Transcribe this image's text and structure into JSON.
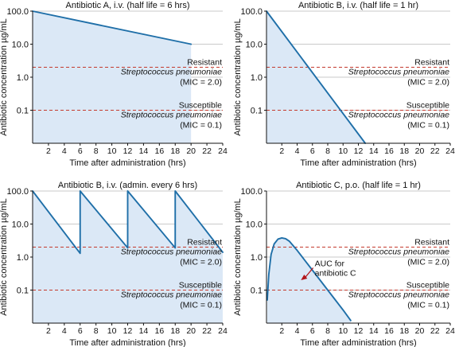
{
  "colors": {
    "line": "#1f6fa8",
    "fill": "#dbe8f6",
    "mic_line": "#c43a2e",
    "grid": "#b9b9b9",
    "arrow": "#b3151a"
  },
  "chart_data": [
    {
      "type": "line",
      "title": "Antibiotic A, i.v. (half life = 6 hrs)",
      "xlabel": "Time after administration (hrs)",
      "ylabel": "Antibiotic concentration µg/mL",
      "xlim": [
        0,
        24
      ],
      "ylim": [
        0.01,
        100
      ],
      "yscale": "log",
      "xticks": [
        "2",
        "4",
        "6",
        "8",
        "10",
        "12",
        "14",
        "16",
        "18",
        "20",
        "22",
        "24"
      ],
      "yticks": [
        "100.0",
        "10.0",
        "1.0",
        "0.1"
      ],
      "series": [
        {
          "x": [
            0,
            20
          ],
          "y": [
            100,
            10
          ]
        }
      ],
      "mic_lines": [
        {
          "y": 2.0,
          "label": [
            "Resistant",
            "Streptococcus pneumoniae",
            "(MIC = 2.0)"
          ]
        },
        {
          "y": 0.1,
          "label": [
            "Susceptible",
            "Streptococcus pneumoniae",
            "(MIC = 0.1)"
          ]
        }
      ]
    },
    {
      "type": "line",
      "title": "Antibiotic B, i.v. (half life = 1 hr)",
      "xlabel": "Time after administration (hrs)",
      "ylabel": "Antibiotic concentration µg/mL",
      "xlim": [
        0,
        24
      ],
      "ylim": [
        0.01,
        100
      ],
      "yscale": "log",
      "xticks": [
        "2",
        "4",
        "6",
        "8",
        "10",
        "12",
        "14",
        "16",
        "18",
        "20",
        "22",
        "24"
      ],
      "yticks": [
        "100.0",
        "10.0",
        "1.0",
        "0.1"
      ],
      "series": [
        {
          "x": [
            0,
            12.9
          ],
          "y": [
            100,
            0.01
          ]
        }
      ],
      "mic_lines": [
        {
          "y": 2.0,
          "label": [
            "Resistant",
            "Streptococcus pneumoniae",
            "(MIC = 2.0)"
          ]
        },
        {
          "y": 0.1,
          "label": [
            "Susceptible",
            "Streptococcus pneumoniae",
            "(MIC = 0.1)"
          ]
        }
      ]
    },
    {
      "type": "line",
      "title": "Antibiotic B, i.v. (admin. every 6 hrs)",
      "xlabel": "Time after administration (hrs)",
      "ylabel": "Antibiotic concentration µg/mL",
      "xlim": [
        0,
        24
      ],
      "ylim": [
        0.01,
        100
      ],
      "yscale": "log",
      "xticks": [
        "2",
        "4",
        "6",
        "8",
        "10",
        "12",
        "14",
        "16",
        "18",
        "20",
        "22",
        "24"
      ],
      "yticks": [
        "100.0",
        "10.0",
        "1.0",
        "0.1"
      ],
      "series": [
        {
          "x": [
            0,
            6,
            6,
            12,
            12,
            18,
            18,
            24
          ],
          "y": [
            100,
            1.3,
            100,
            1.9,
            100,
            1.9,
            100,
            1.4
          ]
        }
      ],
      "mic_lines": [
        {
          "y": 2.0,
          "label": [
            "Resistant",
            "Streptococcus pneumoniae",
            "(MIC = 2.0)"
          ]
        },
        {
          "y": 0.1,
          "label": [
            "Susceptible",
            "Streptococcus pneumoniae",
            "(MIC = 0.1)"
          ]
        }
      ]
    },
    {
      "type": "area",
      "title": "Antibiotic C, p.o. (half life = 1 hr)",
      "xlabel": "Time after administration (hrs)",
      "ylabel": "Antibiotic concentration µg/mL",
      "xlim": [
        0,
        24
      ],
      "ylim": [
        0.01,
        100
      ],
      "yscale": "log",
      "xticks": [
        "2",
        "4",
        "6",
        "8",
        "10",
        "12",
        "14",
        "16",
        "18",
        "20",
        "22",
        "24"
      ],
      "yticks": [
        "100.0",
        "10.0",
        "1.0",
        "0.1"
      ],
      "series": [
        {
          "x": [
            0.1,
            0.3,
            0.6,
            1.0,
            1.5,
            2.0,
            2.5,
            3.0,
            4.0,
            5.0,
            6.0,
            7.0,
            8.0,
            9.0,
            10.0,
            11.0
          ],
          "y": [
            0.05,
            0.3,
            1.2,
            2.5,
            3.5,
            3.8,
            3.6,
            3.0,
            1.6,
            0.8,
            0.4,
            0.2,
            0.1,
            0.05,
            0.025,
            0.012
          ]
        }
      ],
      "mic_lines": [
        {
          "y": 2.0,
          "label": [
            "Resistant",
            "Streptococcus pneumoniae",
            "(MIC = 2.0)"
          ]
        },
        {
          "y": 0.1,
          "label": [
            "Susceptible",
            "Streptococcus pneumoniae",
            "(MIC = 0.1)"
          ]
        }
      ],
      "annotations": [
        {
          "text": [
            "AUC for",
            "antibiotic C"
          ],
          "points_to": {
            "x": 4.5,
            "y": 0.2
          }
        }
      ]
    }
  ]
}
